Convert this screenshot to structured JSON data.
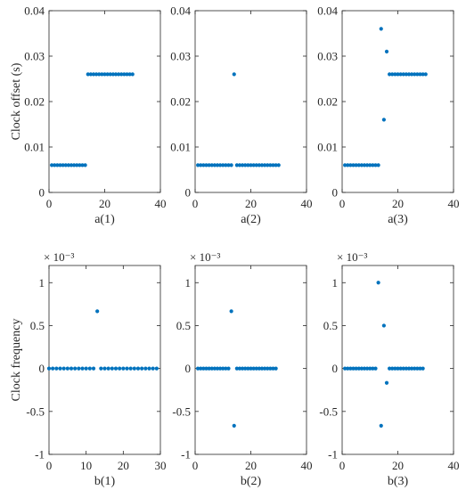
{
  "figure": {
    "background": "#ffffff",
    "marker_color": "#0072BD"
  },
  "chart_data": [
    {
      "type": "scatter",
      "xlabel": "a(1)",
      "ylabel": "Clock offset (s)",
      "xlim": [
        0,
        40
      ],
      "ylim": [
        0,
        0.04
      ],
      "xticks": [
        0,
        20,
        40
      ],
      "xtick_labels": [
        "0",
        "20",
        "40"
      ],
      "yticks": [
        0,
        0.01,
        0.02,
        0.03,
        0.04
      ],
      "ytick_labels": [
        "0",
        "0.01",
        "0.02",
        "0.03",
        "0.04"
      ],
      "grid": true,
      "series": [
        {
          "x": [
            1,
            2,
            3,
            4,
            5,
            6,
            7,
            8,
            9,
            10,
            11,
            12,
            13,
            14,
            15,
            16,
            17,
            18,
            19,
            20,
            21,
            22,
            23,
            24,
            25,
            26,
            27,
            28,
            29,
            30
          ],
          "y": [
            0.006,
            0.006,
            0.006,
            0.006,
            0.006,
            0.006,
            0.006,
            0.006,
            0.006,
            0.006,
            0.006,
            0.006,
            0.006,
            0.026,
            0.026,
            0.026,
            0.026,
            0.026,
            0.026,
            0.026,
            0.026,
            0.026,
            0.026,
            0.026,
            0.026,
            0.026,
            0.026,
            0.026,
            0.026,
            0.026
          ]
        }
      ]
    },
    {
      "type": "scatter",
      "xlabel": "a(2)",
      "ylabel": "",
      "xlim": [
        0,
        40
      ],
      "ylim": [
        0,
        0.04
      ],
      "xticks": [
        0,
        20,
        40
      ],
      "xtick_labels": [
        "0",
        "20",
        "40"
      ],
      "yticks": [
        0,
        0.01,
        0.02,
        0.03,
        0.04
      ],
      "ytick_labels": [
        "0",
        "0.01",
        "0.02",
        "0.03",
        "0.04"
      ],
      "grid": true,
      "series": [
        {
          "x": [
            1,
            2,
            3,
            4,
            5,
            6,
            7,
            8,
            9,
            10,
            11,
            12,
            13,
            14,
            15,
            16,
            17,
            18,
            19,
            20,
            21,
            22,
            23,
            24,
            25,
            26,
            27,
            28,
            29,
            30
          ],
          "y": [
            0.006,
            0.006,
            0.006,
            0.006,
            0.006,
            0.006,
            0.006,
            0.006,
            0.006,
            0.006,
            0.006,
            0.006,
            0.006,
            0.026,
            0.006,
            0.006,
            0.006,
            0.006,
            0.006,
            0.006,
            0.006,
            0.006,
            0.006,
            0.006,
            0.006,
            0.006,
            0.006,
            0.006,
            0.006,
            0.006
          ]
        }
      ]
    },
    {
      "type": "scatter",
      "xlabel": "a(3)",
      "ylabel": "",
      "xlim": [
        0,
        40
      ],
      "ylim": [
        0,
        0.04
      ],
      "xticks": [
        0,
        20,
        40
      ],
      "xtick_labels": [
        "0",
        "20",
        "40"
      ],
      "yticks": [
        0,
        0.01,
        0.02,
        0.03,
        0.04
      ],
      "ytick_labels": [
        "0",
        "0.01",
        "0.02",
        "0.03",
        "0.04"
      ],
      "grid": true,
      "series": [
        {
          "x": [
            1,
            2,
            3,
            4,
            5,
            6,
            7,
            8,
            9,
            10,
            11,
            12,
            13,
            14,
            15,
            16,
            17,
            18,
            19,
            20,
            21,
            22,
            23,
            24,
            25,
            26,
            27,
            28,
            29,
            30
          ],
          "y": [
            0.006,
            0.006,
            0.006,
            0.006,
            0.006,
            0.006,
            0.006,
            0.006,
            0.006,
            0.006,
            0.006,
            0.006,
            0.006,
            0.036,
            0.016,
            0.031,
            0.026,
            0.026,
            0.026,
            0.026,
            0.026,
            0.026,
            0.026,
            0.026,
            0.026,
            0.026,
            0.026,
            0.026,
            0.026,
            0.026
          ]
        }
      ]
    },
    {
      "type": "scatter",
      "xlabel": "b(1)",
      "ylabel": "Clock frequency",
      "xlim": [
        0,
        30
      ],
      "ylim": [
        -1,
        1.2
      ],
      "y_exponent_label": "× 10⁻³",
      "xticks": [
        0,
        10,
        20,
        30
      ],
      "xtick_labels": [
        "0",
        "10",
        "20",
        "30"
      ],
      "yticks": [
        -1,
        -0.5,
        0,
        0.5,
        1
      ],
      "ytick_labels": [
        "-1",
        "-0.5",
        "0",
        "0.5",
        "1"
      ],
      "grid": true,
      "series": [
        {
          "x": [
            0,
            1,
            2,
            3,
            4,
            5,
            6,
            7,
            8,
            9,
            10,
            11,
            12,
            13,
            14,
            15,
            16,
            17,
            18,
            19,
            20,
            21,
            22,
            23,
            24,
            25,
            26,
            27,
            28,
            29
          ],
          "y": [
            0,
            0,
            0,
            0,
            0,
            0,
            0,
            0,
            0,
            0,
            0,
            0,
            0,
            0.667,
            0,
            0,
            0,
            0,
            0,
            0,
            0,
            0,
            0,
            0,
            0,
            0,
            0,
            0,
            0,
            0
          ]
        }
      ]
    },
    {
      "type": "scatter",
      "xlabel": "b(2)",
      "ylabel": "",
      "xlim": [
        0,
        40
      ],
      "ylim": [
        -1,
        1.2
      ],
      "y_exponent_label": "× 10⁻³",
      "xticks": [
        0,
        20,
        40
      ],
      "xtick_labels": [
        "0",
        "20",
        "40"
      ],
      "yticks": [
        -1,
        -0.5,
        0,
        0.5,
        1
      ],
      "ytick_labels": [
        "-1",
        "-0.5",
        "0",
        "0.5",
        "1"
      ],
      "grid": true,
      "series": [
        {
          "x": [
            1,
            2,
            3,
            4,
            5,
            6,
            7,
            8,
            9,
            10,
            11,
            12,
            13,
            14,
            15,
            16,
            17,
            18,
            19,
            20,
            21,
            22,
            23,
            24,
            25,
            26,
            27,
            28,
            29
          ],
          "y": [
            0,
            0,
            0,
            0,
            0,
            0,
            0,
            0,
            0,
            0,
            0,
            0,
            0.667,
            -0.667,
            0,
            0,
            0,
            0,
            0,
            0,
            0,
            0,
            0,
            0,
            0,
            0,
            0,
            0,
            0
          ]
        }
      ]
    },
    {
      "type": "scatter",
      "xlabel": "b(3)",
      "ylabel": "",
      "xlim": [
        0,
        40
      ],
      "ylim": [
        -1,
        1.2
      ],
      "y_exponent_label": "× 10⁻³",
      "xticks": [
        0,
        20,
        40
      ],
      "xtick_labels": [
        "0",
        "20",
        "40"
      ],
      "yticks": [
        -1,
        -0.5,
        0,
        0.5,
        1
      ],
      "ytick_labels": [
        "-1",
        "-0.5",
        "0",
        "0.5",
        "1"
      ],
      "grid": true,
      "series": [
        {
          "x": [
            1,
            2,
            3,
            4,
            5,
            6,
            7,
            8,
            9,
            10,
            11,
            12,
            13,
            14,
            15,
            16,
            17,
            18,
            19,
            20,
            21,
            22,
            23,
            24,
            25,
            26,
            27,
            28,
            29
          ],
          "y": [
            0,
            0,
            0,
            0,
            0,
            0,
            0,
            0,
            0,
            0,
            0,
            0,
            1.0,
            -0.667,
            0.5,
            -0.167,
            0,
            0,
            0,
            0,
            0,
            0,
            0,
            0,
            0,
            0,
            0,
            0,
            0
          ]
        }
      ]
    }
  ]
}
